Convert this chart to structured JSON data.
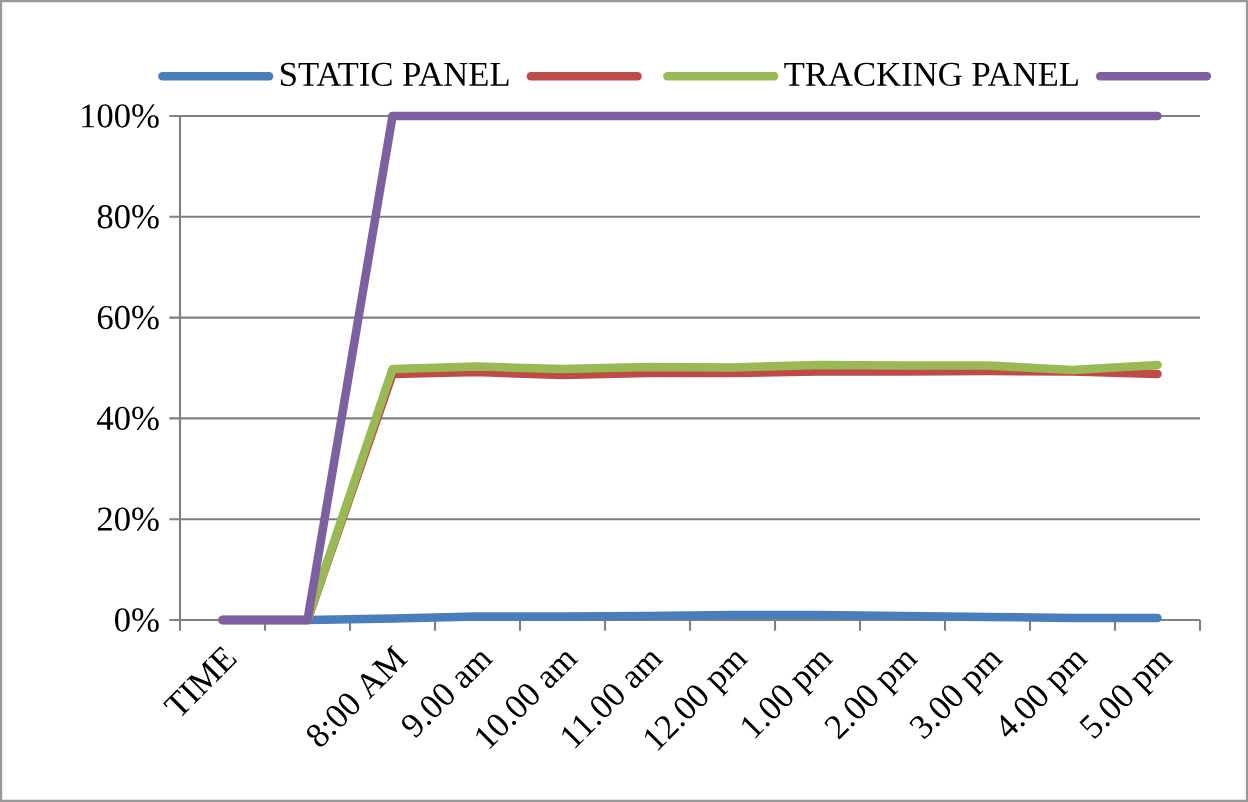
{
  "chart_data": {
    "type": "line",
    "categories": [
      "TIME",
      null,
      "8:00 AM",
      "9.00 am",
      "10.00 am",
      "11.00 am",
      "12.00 pm",
      "1.00 pm",
      "2.00 pm",
      "3.00 pm",
      "4.00 pm",
      "5.00 pm"
    ],
    "series": [
      {
        "name": "STATIC PANEL",
        "color": "#4a7ebb",
        "values": [
          0,
          0,
          0.3,
          0.7,
          0.7,
          0.8,
          1,
          1,
          0.8,
          0.6,
          0.4,
          0.4
        ]
      },
      {
        "color": "#be4b48",
        "values": [
          0,
          0,
          48.8,
          49.2,
          48.6,
          49,
          49,
          49.3,
          49.3,
          49.4,
          49.3,
          48.8
        ]
      },
      {
        "name": "TRACKING PANEL",
        "color": "#98b954",
        "values": [
          0,
          0,
          49.8,
          50.3,
          49.8,
          50.2,
          50.1,
          50.6,
          50.5,
          50.5,
          49.6,
          50.6
        ]
      },
      {
        "color": "#7d60a0",
        "values": [
          0,
          0,
          100,
          100,
          100,
          100,
          100,
          100,
          100,
          100,
          100,
          100
        ]
      }
    ],
    "ylim": [
      0,
      100
    ],
    "yticks": [
      {
        "value": 0,
        "label": "0%"
      },
      {
        "value": 20,
        "label": "20%"
      },
      {
        "value": 40,
        "label": "40%"
      },
      {
        "value": 60,
        "label": "60%"
      },
      {
        "value": 80,
        "label": "80%"
      },
      {
        "value": 100,
        "label": "100%"
      }
    ],
    "grid": "y",
    "legend": "top",
    "marker": "none",
    "line_style": "solid"
  }
}
